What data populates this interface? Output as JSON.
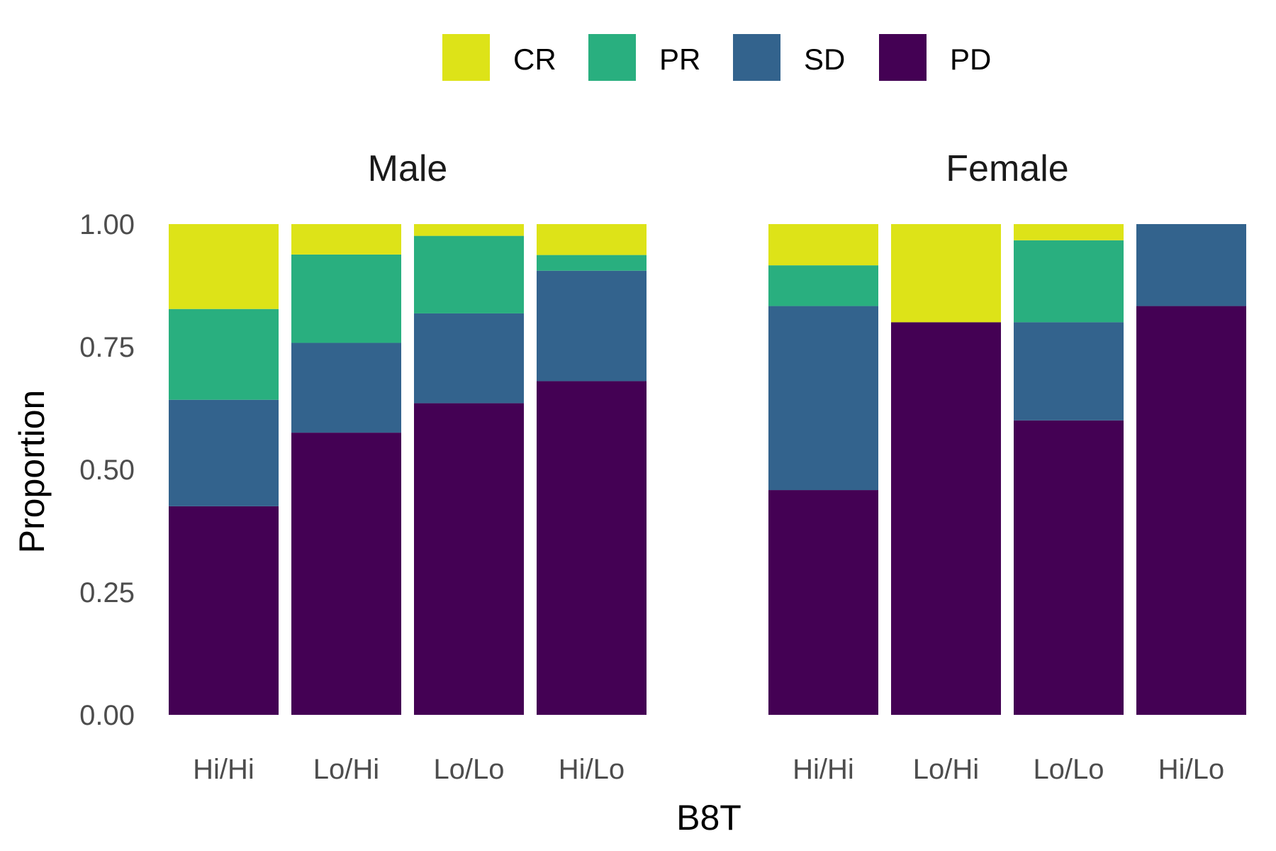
{
  "chart_data": {
    "type": "bar",
    "stacked": true,
    "xlabel": "B8T",
    "ylabel": "Proportion",
    "ylim": [
      0,
      1
    ],
    "yticks": [
      "0.00",
      "0.25",
      "0.50",
      "0.75",
      "1.00"
    ],
    "categories": [
      "Hi/Hi",
      "Lo/Hi",
      "Lo/Lo",
      "Hi/Lo"
    ],
    "legend": {
      "position": "top",
      "items": [
        {
          "name": "CR",
          "color": "#DDE318"
        },
        {
          "name": "PR",
          "color": "#29AF7F"
        },
        {
          "name": "SD",
          "color": "#33638D"
        },
        {
          "name": "PD",
          "color": "#440154"
        }
      ]
    },
    "stack_order_bottom_to_top": [
      "PD",
      "SD",
      "PR",
      "CR"
    ],
    "facets": [
      {
        "title": "Male",
        "series": [
          {
            "name": "PD",
            "values": [
              0.425,
              0.575,
              0.635,
              0.68
            ]
          },
          {
            "name": "SD",
            "values": [
              0.217,
              0.183,
              0.183,
              0.225
            ]
          },
          {
            "name": "PR",
            "values": [
              0.185,
              0.18,
              0.158,
              0.032
            ]
          },
          {
            "name": "CR",
            "values": [
              0.173,
              0.062,
              0.024,
              0.063
            ]
          }
        ]
      },
      {
        "title": "Female",
        "series": [
          {
            "name": "PD",
            "values": [
              0.458,
              0.8,
              0.6,
              0.833
            ]
          },
          {
            "name": "SD",
            "values": [
              0.375,
              0.0,
              0.2,
              0.167
            ]
          },
          {
            "name": "PR",
            "values": [
              0.083,
              0.0,
              0.167,
              0.0
            ]
          },
          {
            "name": "CR",
            "values": [
              0.084,
              0.2,
              0.033,
              0.0
            ]
          }
        ]
      }
    ],
    "grid": false
  }
}
